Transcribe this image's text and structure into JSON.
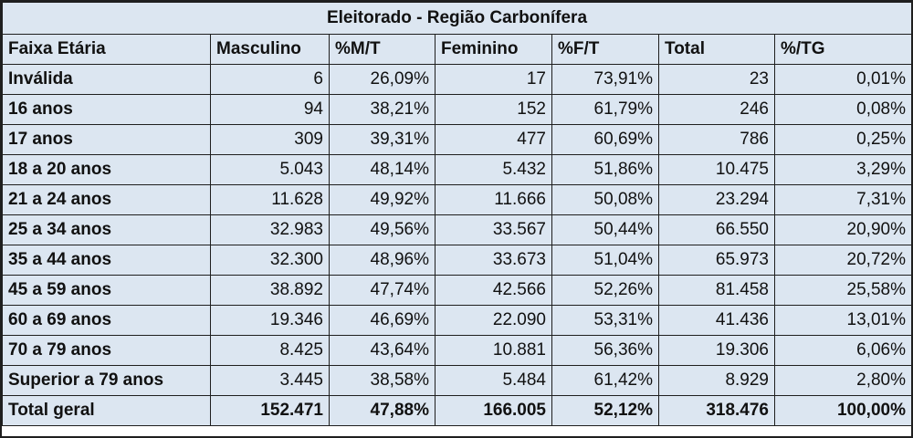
{
  "title": "Eleitorado - Região Carbonífera",
  "headers": [
    "Faixa Etária",
    "Masculino",
    "%M/T",
    "Feminino",
    "%F/T",
    "Total",
    "%/TG"
  ],
  "rows": [
    [
      "Inválida",
      "6",
      "26,09%",
      "17",
      "73,91%",
      "23",
      "0,01%"
    ],
    [
      "16 anos",
      "94",
      "38,21%",
      "152",
      "61,79%",
      "246",
      "0,08%"
    ],
    [
      "17 anos",
      "309",
      "39,31%",
      "477",
      "60,69%",
      "786",
      "0,25%"
    ],
    [
      "18 a 20 anos",
      "5.043",
      "48,14%",
      "5.432",
      "51,86%",
      "10.475",
      "3,29%"
    ],
    [
      "21 a 24 anos",
      "11.628",
      "49,92%",
      "11.666",
      "50,08%",
      "23.294",
      "7,31%"
    ],
    [
      "25 a 34 anos",
      "32.983",
      "49,56%",
      "33.567",
      "50,44%",
      "66.550",
      "20,90%"
    ],
    [
      "35 a 44 anos",
      "32.300",
      "48,96%",
      "33.673",
      "51,04%",
      "65.973",
      "20,72%"
    ],
    [
      "45 a 59 anos",
      "38.892",
      "47,74%",
      "42.566",
      "52,26%",
      "81.458",
      "25,58%"
    ],
    [
      "60 a 69 anos",
      "19.346",
      "46,69%",
      "22.090",
      "53,31%",
      "41.436",
      "13,01%"
    ],
    [
      "70 a 79 anos",
      "8.425",
      "43,64%",
      "10.881",
      "56,36%",
      "19.306",
      "6,06%"
    ],
    [
      "Superior a 79 anos",
      "3.445",
      "38,58%",
      "5.484",
      "61,42%",
      "8.929",
      "2,80%"
    ]
  ],
  "total_row": [
    "Total geral",
    "152.471",
    "47,88%",
    "166.005",
    "52,12%",
    "318.476",
    "100,00%"
  ],
  "colors": {
    "cell_background": "#dce6f1",
    "border": "#1f1f1f",
    "text": "#111111"
  }
}
